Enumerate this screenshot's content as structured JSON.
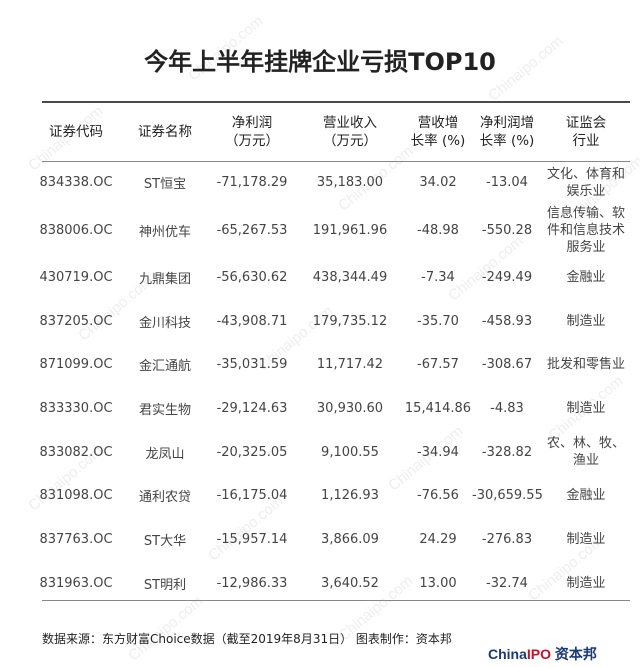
{
  "title": "今年上半年挂牌企业亏损TOP10",
  "table": {
    "headers": [
      [
        "证券代码"
      ],
      [
        "证券名称"
      ],
      [
        "净利润",
        "（万元）"
      ],
      [
        "营业收入",
        "（万元）"
      ],
      [
        "营收增",
        "长率 (%)"
      ],
      [
        "净利润增",
        "长率 (%)"
      ],
      [
        "证监会",
        "行业"
      ]
    ],
    "rows": [
      [
        "834338.OC",
        "ST恒宝",
        "-71,178.29",
        "35,183.00",
        "34.02",
        "-13.04",
        "文化、体育和娱乐业"
      ],
      [
        "838006.OC",
        "神州优车",
        "-65,267.53",
        "191,961.96",
        "-48.98",
        "-550.28",
        "信息传输、软件和信息技术服务业"
      ],
      [
        "430719.OC",
        "九鼎集团",
        "-56,630.62",
        "438,344.49",
        "-7.34",
        "-249.49",
        "金融业"
      ],
      [
        "837205.OC",
        "金川科技",
        "-43,908.71",
        "179,735.12",
        "-35.70",
        "-458.93",
        "制造业"
      ],
      [
        "871099.OC",
        "金汇通航",
        "-35,031.59",
        "11,717.42",
        "-67.57",
        "-308.67",
        "批发和零售业"
      ],
      [
        "833330.OC",
        "君实生物",
        "-29,124.63",
        "30,930.60",
        "15,414.86",
        "-4.83",
        "制造业"
      ],
      [
        "833082.OC",
        "龙凤山",
        "-20,325.05",
        "9,100.55",
        "-34.94",
        "-328.82",
        "农、林、牧、渔业"
      ],
      [
        "831098.OC",
        "通利农贷",
        "-16,175.04",
        "1,126.93",
        "-76.56",
        "-30,659.55",
        "金融业"
      ],
      [
        "837763.OC",
        "ST大华",
        "-15,957.14",
        "3,866.09",
        "24.29",
        "-276.83",
        "制造业"
      ],
      [
        "831963.OC",
        "ST明利",
        "-12,986.33",
        "3,640.52",
        "13.00",
        "-32.74",
        "制造业"
      ]
    ]
  },
  "source": "数据来源：东方财富Choice数据（截至2019年8月31日） 图表制作：资本邦",
  "logo": {
    "part1": "China",
    "part2": "IPO",
    "part3": " 资本邦"
  },
  "watermark_text": "Chinaipo.com"
}
